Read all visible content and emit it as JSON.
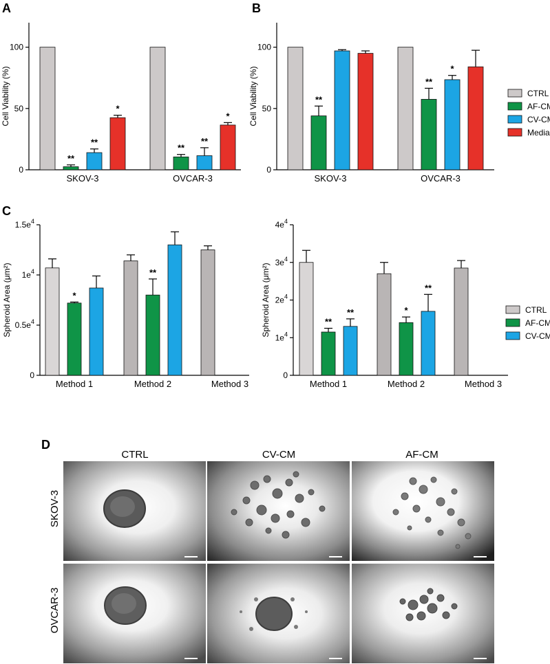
{
  "colors": {
    "CTRL": "#cdc9c9",
    "CTRL_dark": "#b9b5b5",
    "AF-CM": "#0f9447",
    "CV-CM": "#1ca5e4",
    "Media": "#e63129",
    "axis": "#000000"
  },
  "panel_labels": [
    "A",
    "B",
    "C",
    "D"
  ],
  "legend_AB": [
    "CTRL",
    "AF-CM",
    "CV-CM",
    "Media"
  ],
  "legend_C": [
    "CTRL",
    "AF-CM",
    "CV-CM"
  ],
  "chart_data": [
    {
      "id": "A",
      "type": "bar",
      "ylabel": "Cell Viability (%)",
      "ylim": [
        0,
        120
      ],
      "yticks": [
        "0",
        "50",
        "100"
      ],
      "ytick_values": [
        0,
        50,
        100
      ],
      "categories": [
        "SKOV-3",
        "OVCAR-3"
      ],
      "series": [
        {
          "name": "CTRL",
          "values": [
            100,
            100
          ],
          "err": [
            0,
            0
          ],
          "sig": [
            "",
            ""
          ]
        },
        {
          "name": "AF-CM",
          "values": [
            2.5,
            10.5
          ],
          "err": [
            1.5,
            2
          ],
          "sig": [
            "**",
            "**"
          ]
        },
        {
          "name": "CV-CM",
          "values": [
            14,
            11.5
          ],
          "err": [
            3,
            6.5
          ],
          "sig": [
            "**",
            "**"
          ]
        },
        {
          "name": "Media",
          "values": [
            42.5,
            36.5
          ],
          "err": [
            2,
            2
          ],
          "sig": [
            "*",
            "*"
          ]
        }
      ],
      "legend": false
    },
    {
      "id": "B",
      "type": "bar",
      "ylabel": "Cell Viability (%)",
      "ylim": [
        0,
        120
      ],
      "yticks": [
        "0",
        "50",
        "100"
      ],
      "ytick_values": [
        0,
        50,
        100
      ],
      "categories": [
        "SKOV-3",
        "OVCAR-3"
      ],
      "series": [
        {
          "name": "CTRL",
          "values": [
            100,
            100
          ],
          "err": [
            0,
            0
          ],
          "sig": [
            "",
            ""
          ]
        },
        {
          "name": "AF-CM",
          "values": [
            44,
            57.5
          ],
          "err": [
            8,
            9
          ],
          "sig": [
            "**",
            "**"
          ]
        },
        {
          "name": "CV-CM",
          "values": [
            97,
            73.5
          ],
          "err": [
            1,
            3.5
          ],
          "sig": [
            "",
            "*"
          ]
        },
        {
          "name": "Media",
          "values": [
            95,
            84
          ],
          "err": [
            2,
            13.5
          ],
          "sig": [
            "",
            ""
          ]
        }
      ],
      "legend": "right"
    },
    {
      "id": "C-left",
      "type": "bar",
      "ylabel": "Spheroid Area (μm²)",
      "ylim": [
        0,
        15000
      ],
      "yticks": [
        "0",
        "0.5e4",
        "1e4",
        "1.5e4"
      ],
      "ytick_values": [
        0,
        5000,
        10000,
        15000
      ],
      "categories": [
        "Method 1",
        "Method 2",
        "Method 3"
      ],
      "series": [
        {
          "name": "CTRL",
          "values": [
            10700,
            11400,
            12500
          ],
          "err": [
            900,
            600,
            400
          ],
          "sig": [
            "",
            "",
            ""
          ]
        },
        {
          "name": "AF-CM",
          "values": [
            7200,
            8000,
            null
          ],
          "err": [
            100,
            1600,
            0
          ],
          "sig": [
            "*",
            "**",
            ""
          ]
        },
        {
          "name": "CV-CM",
          "values": [
            8700,
            13000,
            null
          ],
          "err": [
            1200,
            1300,
            0
          ],
          "sig": [
            "",
            "",
            ""
          ]
        }
      ],
      "legend": false
    },
    {
      "id": "C-right",
      "type": "bar",
      "ylabel": "Spheroid Area (μm²)",
      "ylim": [
        0,
        40000
      ],
      "yticks": [
        "0",
        "1e4",
        "2e4",
        "3e4",
        "4e4"
      ],
      "ytick_values": [
        0,
        10000,
        20000,
        30000,
        40000
      ],
      "categories": [
        "Method 1",
        "Method 2",
        "Method 3"
      ],
      "series": [
        {
          "name": "CTRL",
          "values": [
            30000,
            27000,
            28500
          ],
          "err": [
            3200,
            3000,
            2000
          ],
          "sig": [
            "",
            "",
            ""
          ]
        },
        {
          "name": "AF-CM",
          "values": [
            11500,
            14000,
            null
          ],
          "err": [
            1000,
            1500,
            0
          ],
          "sig": [
            "**",
            "*",
            ""
          ]
        },
        {
          "name": "CV-CM",
          "values": [
            13000,
            17000,
            null
          ],
          "err": [
            2000,
            4500,
            0
          ],
          "sig": [
            "**",
            "**",
            ""
          ]
        }
      ],
      "legend": "right"
    }
  ],
  "panel_D": {
    "columns": [
      "CTRL",
      "CV-CM",
      "AF-CM"
    ],
    "rows": [
      "SKOV-3",
      "OVCAR-3"
    ]
  }
}
